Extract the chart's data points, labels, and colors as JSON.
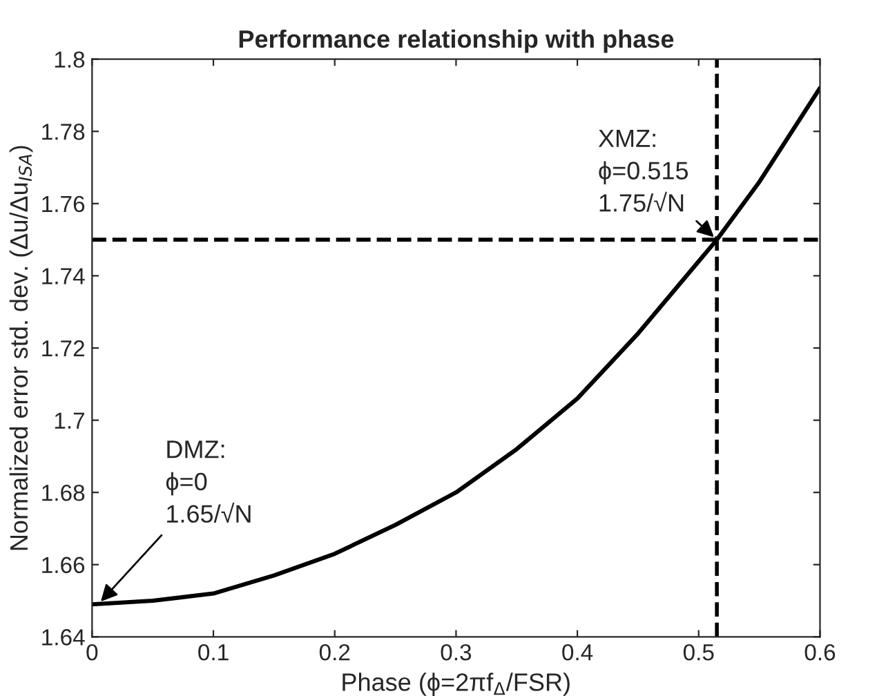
{
  "chart_data": {
    "type": "line",
    "title": "Performance relationship with phase",
    "xlabel": "Phase (ϕ=2πf$_{Δ}$/FSR)",
    "ylabel": "Normalized error std. dev. (Δu/Δu$_{ISA}$)",
    "x": [
      0,
      0.05,
      0.1,
      0.15,
      0.2,
      0.25,
      0.3,
      0.35,
      0.4,
      0.45,
      0.5,
      0.515,
      0.55,
      0.6
    ],
    "series": [
      {
        "color": "#000000",
        "values": [
          1.649,
          1.65,
          1.652,
          1.657,
          1.663,
          1.671,
          1.68,
          1.692,
          1.706,
          1.724,
          1.744,
          1.75,
          1.766,
          1.792
        ]
      }
    ],
    "xlim": [
      0,
      0.6
    ],
    "xticks": [
      0,
      0.1,
      0.2,
      0.3,
      0.4,
      0.5,
      0.6
    ],
    "ylim": [
      1.64,
      1.8
    ],
    "yticks": [
      1.64,
      1.66,
      1.68,
      1.7,
      1.72,
      1.74,
      1.76,
      1.78,
      1.8
    ],
    "ref_lines": [
      {
        "axis": "y",
        "value": 1.75,
        "color": "#000000",
        "line_style": "dashed"
      },
      {
        "axis": "x",
        "value": 0.515,
        "color": "#000000",
        "line_style": "dashed"
      }
    ],
    "annotations": [
      {
        "text": "DMZ:\nϕ=0\n1.65/√N",
        "x": 0.005,
        "y": 1.649
      },
      {
        "text": "XMZ:\nϕ=0.515\n1.75/√N",
        "x": 0.515,
        "y": 1.75
      }
    ],
    "grid": false,
    "legend": false,
    "marker": "none",
    "line_style": "solid"
  }
}
